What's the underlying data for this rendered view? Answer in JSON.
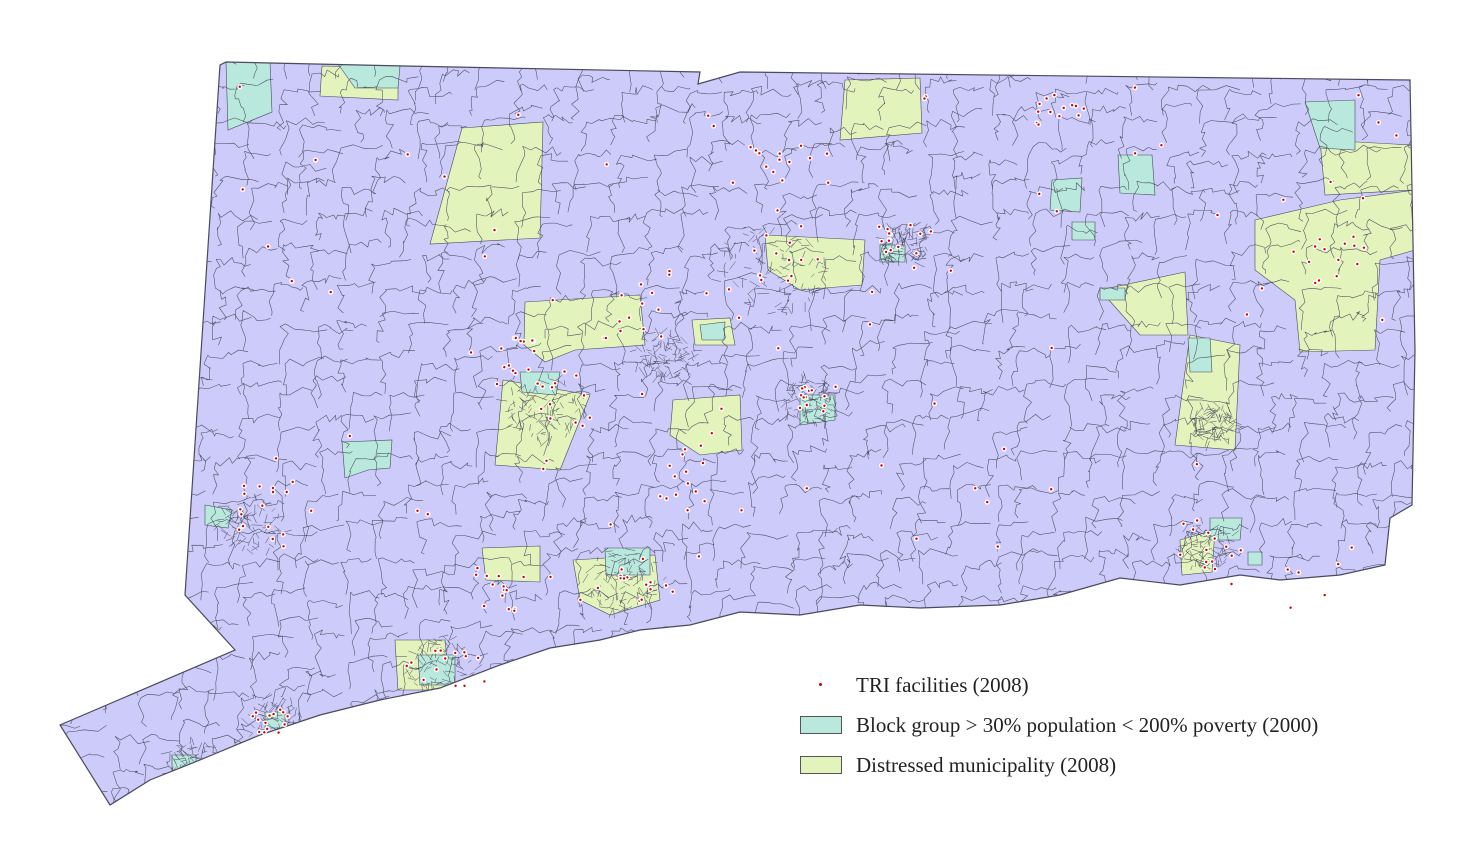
{
  "colors": {
    "background": "#ffffff",
    "base_fill": "#cccbfa",
    "boundary": "#4a4a5e",
    "poverty_fill": "#b9e8dc",
    "distressed_fill": "#e2f3bc",
    "facility_dot": "#cc0000"
  },
  "legend": {
    "items": [
      {
        "key": "tri",
        "label": "TRI facilities (2008)",
        "symbol": "red-dot-marker"
      },
      {
        "key": "poverty",
        "label": "Block group > 30% population < 200% poverty (2000)",
        "symbol": "teal-swatch"
      },
      {
        "key": "distressed",
        "label": "Distressed municipality (2008)",
        "symbol": "green-swatch"
      }
    ]
  },
  "map": {
    "facilities_plotted": 300,
    "regions": [
      "base-area",
      "poverty-block-groups",
      "distressed-municipalities"
    ]
  }
}
